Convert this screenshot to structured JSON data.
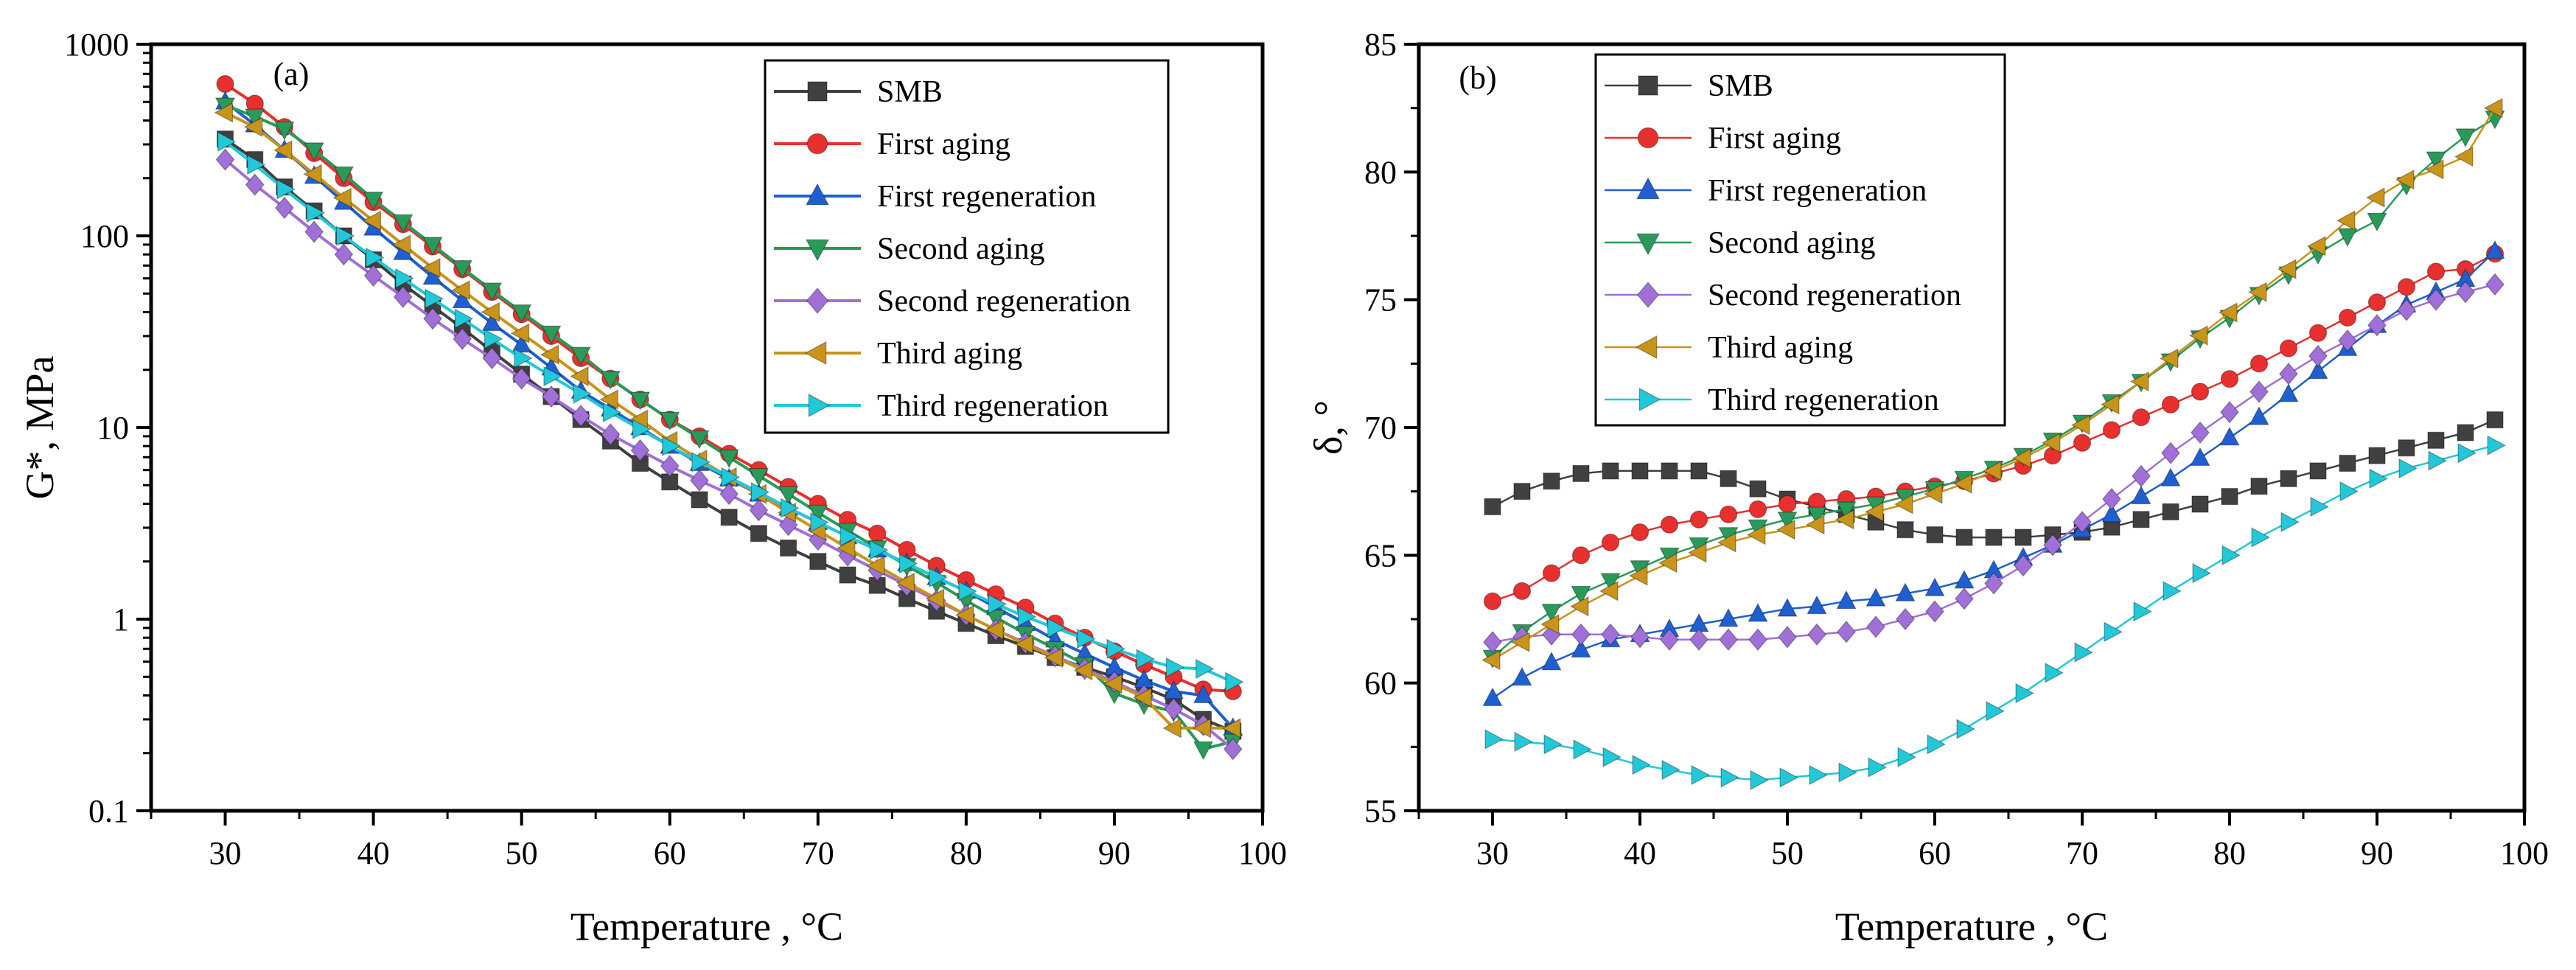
{
  "chart_data": [
    {
      "type": "line",
      "panel": "(a)",
      "title": "",
      "xlabel": "Temperature , °C",
      "ylabel": "G*, MPa",
      "xlim": [
        25,
        100
      ],
      "ylim": [
        0.1,
        1000
      ],
      "yscale": "log",
      "x_ticks": [
        30,
        40,
        50,
        60,
        70,
        80,
        90,
        100
      ],
      "x_tick_labels": [
        "30",
        "40",
        "50",
        "60",
        "70",
        "80",
        "90",
        "100"
      ],
      "y_ticks": [
        0.1,
        1,
        10,
        100,
        1000
      ],
      "y_tick_labels": [
        "0.1",
        "1",
        "10",
        "100",
        "1000"
      ],
      "grid": false,
      "legend_position": "top-right",
      "x": [
        30,
        32,
        34,
        36,
        38,
        40,
        42,
        44,
        46,
        48,
        50,
        52,
        54,
        56,
        58,
        60,
        62,
        64,
        66,
        68,
        70,
        72,
        74,
        76,
        78,
        80,
        82,
        84,
        86,
        88,
        90,
        92,
        94,
        96,
        98
      ],
      "series": [
        {
          "name": "SMB",
          "color": "#404040",
          "marker": "square",
          "values": [
            320,
            250,
            180,
            135,
            100,
            75,
            56,
            43,
            33,
            25,
            19,
            14.5,
            11,
            8.5,
            6.5,
            5.2,
            4.2,
            3.4,
            2.8,
            2.35,
            2.0,
            1.7,
            1.5,
            1.28,
            1.1,
            0.95,
            0.82,
            0.72,
            0.63,
            0.56,
            0.5,
            0.44,
            0.38,
            0.3,
            0.26
          ]
        },
        {
          "name": "First aging",
          "color": "#e8302f",
          "marker": "circle",
          "values": [
            620,
            490,
            370,
            270,
            200,
            150,
            115,
            88,
            67,
            51,
            39,
            30,
            23,
            18,
            14,
            11,
            9.0,
            7.3,
            6.0,
            4.9,
            4.0,
            3.3,
            2.8,
            2.3,
            1.9,
            1.6,
            1.35,
            1.15,
            0.95,
            0.8,
            0.68,
            0.58,
            0.5,
            0.43,
            0.42
          ]
        },
        {
          "name": "First regeneration",
          "color": "#1f5fd0",
          "marker": "triangle-up",
          "values": [
            500,
            380,
            280,
            205,
            150,
            110,
            82,
            61,
            46,
            35,
            27,
            20.5,
            15.5,
            12.5,
            10,
            8.0,
            6.5,
            5.4,
            4.5,
            3.8,
            3.2,
            2.7,
            2.3,
            1.95,
            1.65,
            1.4,
            1.15,
            0.95,
            0.78,
            0.66,
            0.56,
            0.48,
            0.42,
            0.4,
            0.27
          ]
        },
        {
          "name": "Second aging",
          "color": "#2a9a5a",
          "marker": "triangle-down",
          "values": [
            480,
            420,
            360,
            280,
            210,
            155,
            118,
            90,
            68,
            52,
            40,
            31,
            24,
            18,
            14,
            11,
            8.8,
            7.0,
            5.6,
            4.5,
            3.6,
            2.9,
            2.35,
            1.9,
            1.55,
            1.25,
            1.02,
            0.84,
            0.7,
            0.58,
            0.41,
            0.36,
            0.33,
            0.21,
            0.23
          ]
        },
        {
          "name": "Second regeneration",
          "color": "#a070d8",
          "marker": "diamond",
          "values": [
            250,
            185,
            140,
            105,
            80,
            62,
            48,
            37,
            29,
            23,
            18,
            14.5,
            11.5,
            9.2,
            7.6,
            6.3,
            5.3,
            4.5,
            3.7,
            3.1,
            2.6,
            2.15,
            1.8,
            1.5,
            1.25,
            1.05,
            0.88,
            0.75,
            0.64,
            0.55,
            0.47,
            0.4,
            0.34,
            0.28,
            0.21
          ]
        },
        {
          "name": "Third aging",
          "color": "#c8941a",
          "marker": "triangle-left",
          "values": [
            440,
            370,
            280,
            210,
            158,
            120,
            90,
            68,
            52,
            40,
            31,
            24,
            18.5,
            14,
            11,
            8.5,
            6.8,
            5.5,
            4.5,
            3.6,
            2.9,
            2.35,
            1.9,
            1.55,
            1.28,
            1.05,
            0.88,
            0.74,
            0.63,
            0.54,
            0.46,
            0.39,
            0.27,
            0.27,
            0.27
          ]
        },
        {
          "name": "Third regeneration",
          "color": "#22c8d8",
          "marker": "triangle-right",
          "values": [
            310,
            235,
            175,
            132,
            100,
            77,
            60,
            47,
            37,
            29,
            23,
            18.5,
            15,
            12,
            9.8,
            8.0,
            6.6,
            5.5,
            4.6,
            3.8,
            3.2,
            2.7,
            2.3,
            1.95,
            1.65,
            1.4,
            1.2,
            1.03,
            0.9,
            0.79,
            0.7,
            0.62,
            0.56,
            0.55,
            0.47
          ]
        }
      ]
    },
    {
      "type": "line",
      "panel": "(b)",
      "title": "",
      "xlabel": "Temperature , °C",
      "ylabel": "δ, °",
      "xlim": [
        25,
        100
      ],
      "ylim": [
        55,
        85
      ],
      "yscale": "linear",
      "x_ticks": [
        30,
        40,
        50,
        60,
        70,
        80,
        90,
        100
      ],
      "x_tick_labels": [
        "30",
        "40",
        "50",
        "60",
        "70",
        "80",
        "90",
        "100"
      ],
      "y_ticks": [
        55,
        60,
        65,
        70,
        75,
        80,
        85
      ],
      "y_tick_labels": [
        "55",
        "60",
        "65",
        "70",
        "75",
        "80",
        "85"
      ],
      "grid": false,
      "legend_position": "top-left",
      "x": [
        30,
        32,
        34,
        36,
        38,
        40,
        42,
        44,
        46,
        48,
        50,
        52,
        54,
        56,
        58,
        60,
        62,
        64,
        66,
        68,
        70,
        72,
        74,
        76,
        78,
        80,
        82,
        84,
        86,
        88,
        90,
        92,
        94,
        96,
        98
      ],
      "series": [
        {
          "name": "SMB",
          "color": "#404040",
          "marker": "square",
          "values": [
            66.9,
            67.5,
            67.9,
            68.2,
            68.3,
            68.3,
            68.3,
            68.3,
            68.0,
            67.6,
            67.2,
            66.9,
            66.6,
            66.3,
            66.0,
            65.8,
            65.7,
            65.7,
            65.7,
            65.8,
            65.9,
            66.1,
            66.4,
            66.7,
            67.0,
            67.3,
            67.7,
            68.0,
            68.3,
            68.6,
            68.9,
            69.2,
            69.5,
            69.8,
            70.3
          ]
        },
        {
          "name": "First aging",
          "color": "#e8302f",
          "marker": "circle",
          "values": [
            63.2,
            63.6,
            64.3,
            65.0,
            65.5,
            65.9,
            66.2,
            66.4,
            66.6,
            66.8,
            67.0,
            67.1,
            67.2,
            67.3,
            67.5,
            67.7,
            67.9,
            68.2,
            68.5,
            68.9,
            69.4,
            69.9,
            70.4,
            70.9,
            71.4,
            71.9,
            72.5,
            73.1,
            73.7,
            74.3,
            74.9,
            75.5,
            76.1,
            76.2,
            76.8
          ]
        },
        {
          "name": "First regeneration",
          "color": "#1f5fd0",
          "marker": "triangle-up",
          "values": [
            59.4,
            60.2,
            60.8,
            61.3,
            61.7,
            61.9,
            62.1,
            62.3,
            62.5,
            62.7,
            62.9,
            63.0,
            63.2,
            63.3,
            63.5,
            63.7,
            64.0,
            64.4,
            64.9,
            65.4,
            66.0,
            66.6,
            67.3,
            68.0,
            68.8,
            69.6,
            70.4,
            71.3,
            72.2,
            73.1,
            74.0,
            74.8,
            75.3,
            75.8,
            76.9
          ]
        },
        {
          "name": "Second aging",
          "color": "#2a9a5a",
          "marker": "triangle-down",
          "values": [
            61.0,
            62.0,
            62.8,
            63.5,
            64.0,
            64.5,
            65.0,
            65.4,
            65.8,
            66.1,
            66.4,
            66.6,
            66.8,
            67.0,
            67.3,
            67.6,
            68.0,
            68.4,
            68.9,
            69.5,
            70.2,
            71.0,
            71.8,
            72.6,
            73.5,
            74.3,
            75.2,
            76.0,
            76.8,
            77.5,
            78.1,
            79.5,
            80.5,
            81.4,
            82.1
          ]
        },
        {
          "name": "Second regeneration",
          "color": "#a070d8",
          "marker": "diamond",
          "values": [
            61.6,
            61.8,
            61.9,
            61.9,
            61.9,
            61.8,
            61.7,
            61.7,
            61.7,
            61.7,
            61.8,
            61.9,
            62.0,
            62.2,
            62.5,
            62.8,
            63.3,
            63.9,
            64.6,
            65.4,
            66.3,
            67.2,
            68.1,
            69.0,
            69.8,
            70.6,
            71.4,
            72.1,
            72.8,
            73.4,
            74.0,
            74.6,
            75.0,
            75.3,
            75.6
          ]
        },
        {
          "name": "Third aging",
          "color": "#c8941a",
          "marker": "triangle-left",
          "values": [
            60.9,
            61.6,
            62.3,
            63.0,
            63.6,
            64.2,
            64.7,
            65.1,
            65.5,
            65.8,
            66.0,
            66.2,
            66.4,
            66.7,
            67.0,
            67.4,
            67.8,
            68.3,
            68.8,
            69.4,
            70.1,
            70.9,
            71.8,
            72.7,
            73.6,
            74.5,
            75.3,
            76.2,
            77.1,
            78.1,
            79.0,
            79.7,
            80.1,
            80.6,
            82.5
          ]
        },
        {
          "name": "Third regeneration",
          "color": "#22c8d8",
          "marker": "triangle-right",
          "values": [
            57.8,
            57.7,
            57.6,
            57.4,
            57.1,
            56.8,
            56.6,
            56.4,
            56.3,
            56.2,
            56.3,
            56.4,
            56.5,
            56.7,
            57.1,
            57.6,
            58.2,
            58.9,
            59.6,
            60.4,
            61.2,
            62.0,
            62.8,
            63.6,
            64.3,
            65.0,
            65.7,
            66.3,
            66.9,
            67.5,
            68.0,
            68.4,
            68.7,
            69.0,
            69.3
          ]
        }
      ]
    }
  ]
}
